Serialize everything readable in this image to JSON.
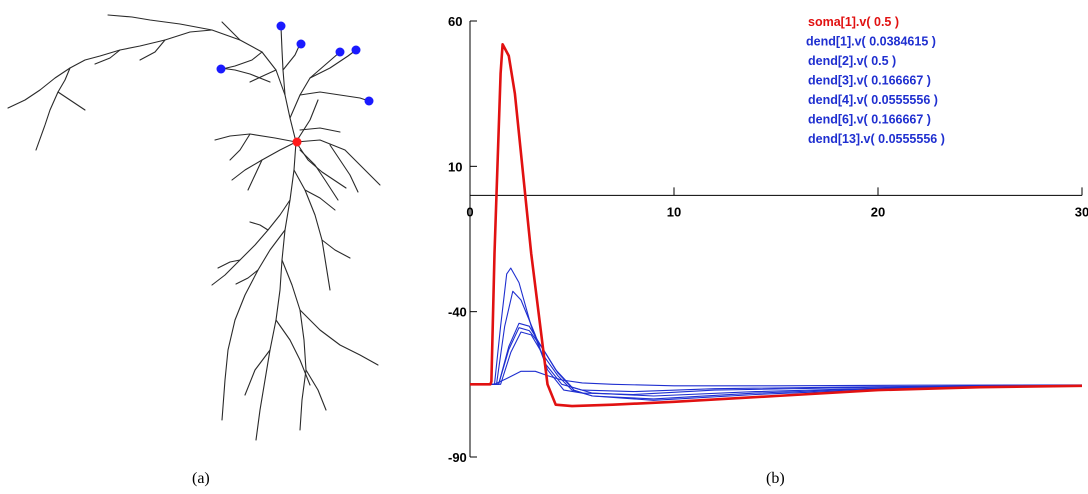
{
  "panels": {
    "a": {
      "caption": "(a)"
    },
    "b": {
      "caption": "(b)"
    }
  },
  "colors": {
    "soma": "#e11111",
    "dend": "#1f2fd0",
    "neuron": "#2a2a2a",
    "axis": "#000000"
  },
  "chart_data": {
    "type": "line",
    "title": "",
    "xlabel": "",
    "ylabel": "",
    "xlim": [
      0,
      30
    ],
    "ylim": [
      -90,
      60
    ],
    "x_ticks": [
      0,
      10,
      20,
      30
    ],
    "y_ticks": [
      60,
      10,
      -40,
      -90
    ],
    "y_tick_labels": [
      "60",
      "10",
      "-40",
      "-90"
    ],
    "x_tick_labels": [
      "0",
      "10",
      "20",
      "30"
    ],
    "legend_position": "top-right",
    "series": [
      {
        "name": "soma[1].v( 0.5 )",
        "color": "#e11111",
        "x": [
          0,
          1,
          1.05,
          1.2,
          1.5,
          1.6,
          1.9,
          2.2,
          3.0,
          3.8,
          4.2,
          5,
          7,
          10,
          15,
          20,
          25,
          30
        ],
        "y": [
          -65,
          -65,
          -64,
          -20,
          42,
          52,
          48,
          35,
          -20,
          -65,
          -72,
          -72.5,
          -72,
          -71,
          -69,
          -67,
          -66,
          -65.5
        ]
      },
      {
        "name": "dend[1].v( 0.0384615 )",
        "color": "#1f2fd0",
        "x": [
          0,
          1.2,
          1.5,
          1.8,
          2.0,
          2.4,
          3.0,
          3.7,
          4.5,
          5.5,
          8,
          12,
          20,
          30
        ],
        "y": [
          -65,
          -65,
          -45,
          -27,
          -25,
          -30,
          -45,
          -58,
          -65,
          -67,
          -67.5,
          -66.5,
          -65.8,
          -65.3
        ]
      },
      {
        "name": "dend[2].v( 0.5 )",
        "color": "#1f2fd0",
        "x": [
          0,
          1.3,
          1.7,
          2.1,
          2.5,
          3.2,
          3.8,
          4.6,
          5.5,
          8,
          12,
          20,
          30
        ],
        "y": [
          -65,
          -65,
          -45,
          -33,
          -36,
          -48,
          -60,
          -67,
          -68,
          -68.5,
          -67,
          -66,
          -65.3
        ]
      },
      {
        "name": "dend[3].v( 0.166667 )",
        "color": "#1f2fd0",
        "x": [
          0,
          1.4,
          1.9,
          2.4,
          2.9,
          3.5,
          4.2,
          5.0,
          6,
          9,
          14,
          22,
          30
        ],
        "y": [
          -65,
          -65,
          -52,
          -44,
          -45,
          -52,
          -60,
          -66,
          -68,
          -69,
          -67.5,
          -66,
          -65.3
        ]
      },
      {
        "name": "dend[4].v( 0.0555556 )",
        "color": "#1f2fd0",
        "x": [
          0,
          1.4,
          1.9,
          2.4,
          2.9,
          3.6,
          4.3,
          5.1,
          6,
          9,
          14,
          22,
          30
        ],
        "y": [
          -65,
          -65,
          -53,
          -45.5,
          -46.5,
          -53,
          -61,
          -67,
          -69,
          -70,
          -68,
          -66,
          -65.3
        ]
      },
      {
        "name": "dend[6].v( 0.166667 )",
        "color": "#1f2fd0",
        "x": [
          0,
          1.5,
          2.0,
          2.5,
          3.0,
          3.6,
          4.3,
          5.0,
          6,
          9,
          14,
          22,
          30
        ],
        "y": [
          -65,
          -65,
          -54,
          -47,
          -48,
          -55,
          -62,
          -67,
          -69,
          -70.5,
          -68.5,
          -66.2,
          -65.3
        ]
      },
      {
        "name": "dend[13].v( 0.0555556 )",
        "color": "#1f2fd0",
        "x": [
          0,
          1.2,
          1.8,
          2.5,
          3.2,
          3.8,
          4.5,
          5.5,
          7,
          10,
          15,
          22,
          30
        ],
        "y": [
          -65,
          -65,
          -63,
          -60.5,
          -60.5,
          -62,
          -63.5,
          -64.5,
          -65,
          -65.5,
          -65.5,
          -65.3,
          -65.2
        ]
      }
    ]
  }
}
